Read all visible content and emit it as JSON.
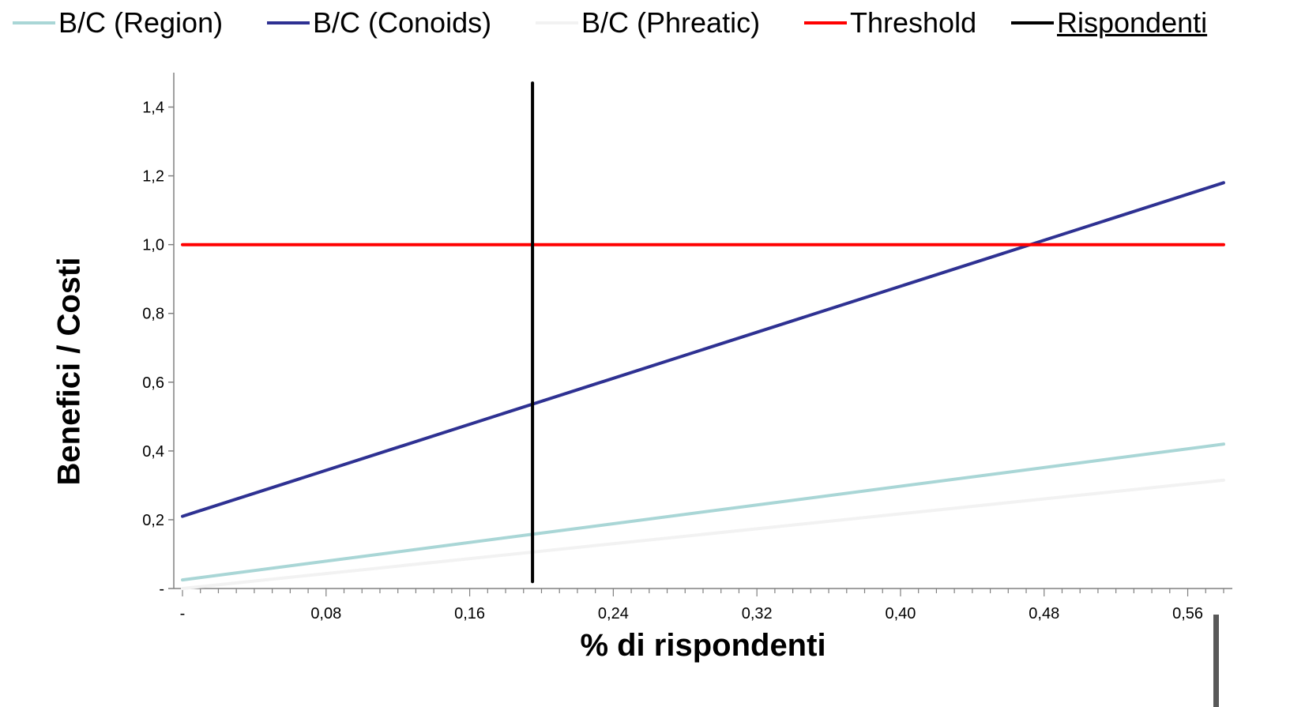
{
  "chart_data": {
    "type": "line",
    "title": "",
    "xlabel": "% di rispondenti",
    "ylabel": "Benefici / Costi",
    "xlim": [
      0,
      0.58
    ],
    "ylim": [
      0,
      1.5
    ],
    "x_ticks": [
      "-",
      "0,08",
      "0,16",
      "0,24",
      "0,32",
      "0,40",
      "0,48",
      "0,56"
    ],
    "x_tick_values": [
      0,
      0.08,
      0.16,
      0.24,
      0.32,
      0.4,
      0.48,
      0.56
    ],
    "y_ticks": [
      "-",
      "0,2",
      "0,4",
      "0,6",
      "0,8",
      "1,0",
      "1,2",
      "1,4"
    ],
    "y_tick_values": [
      0,
      0.2,
      0.4,
      0.6,
      0.8,
      1.0,
      1.2,
      1.4
    ],
    "grid": false,
    "legend_position": "top",
    "series": [
      {
        "name": "B/C (Region)",
        "color": "#a9d6d6",
        "x": [
          0,
          0.58
        ],
        "y": [
          0.025,
          0.42
        ]
      },
      {
        "name": "B/C (Conoids)",
        "color": "#2e3192",
        "x": [
          0,
          0.58
        ],
        "y": [
          0.21,
          1.18
        ]
      },
      {
        "name": "B/C (Phreatic)",
        "color": "#f2f2f2",
        "x": [
          0,
          0.58
        ],
        "y": [
          0.0,
          0.315
        ]
      },
      {
        "name": "Threshold",
        "color": "#ff0000",
        "x": [
          0,
          0.58
        ],
        "y": [
          1.0,
          1.0
        ]
      },
      {
        "name": "Rispondenti",
        "color": "#000000",
        "x": [
          0.195,
          0.195
        ],
        "y": [
          0.02,
          1.47
        ]
      }
    ]
  }
}
